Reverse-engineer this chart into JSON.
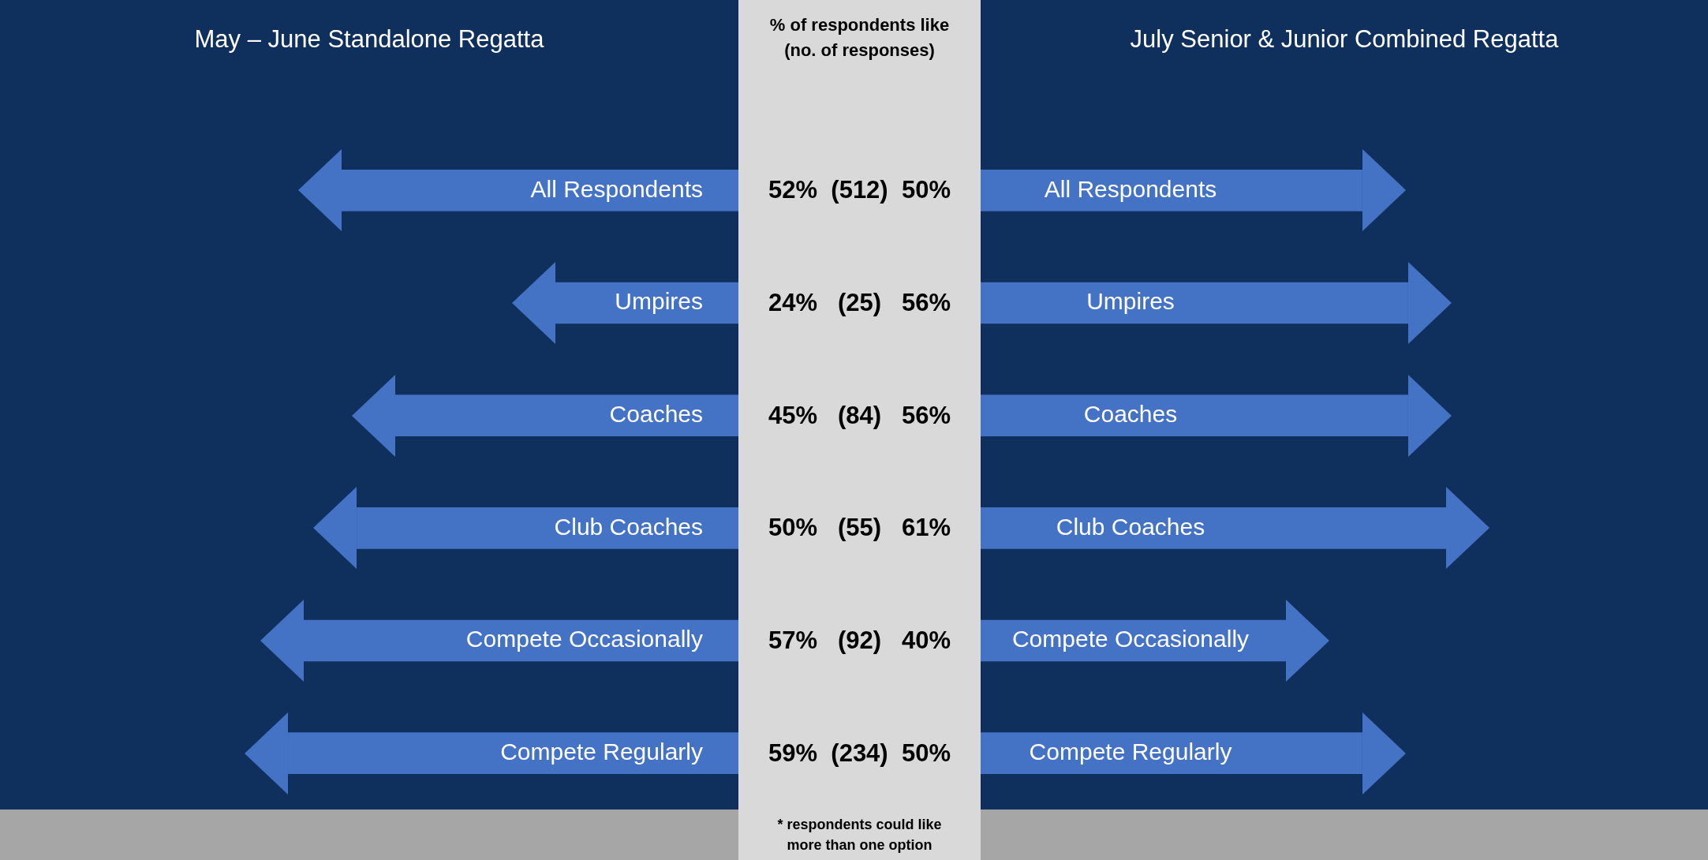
{
  "chart_data": [
    {
      "type": "bar",
      "orientation": "horizontal",
      "title": "May – June Standalone Regatta",
      "categories": [
        "All Respondents",
        "Umpires",
        "Coaches",
        "Club Coaches",
        "Compete Occasionally",
        "Compete Regularly"
      ],
      "values": [
        52,
        24,
        45,
        50,
        57,
        59
      ],
      "value_labels": [
        "52%",
        "24%",
        "45%",
        "50%",
        "57%",
        "59%"
      ],
      "color": "#4472c4"
    },
    {
      "type": "other",
      "title": "% of respondents like",
      "subtitle": "(no. of responses)",
      "values": [
        512,
        25,
        84,
        55,
        92,
        234
      ],
      "value_labels": [
        "(512)",
        "(25)",
        "(84)",
        "(55)",
        "(92)",
        "(234)"
      ],
      "annotations": [
        "* respondents could like more than one option"
      ]
    },
    {
      "type": "bar",
      "orientation": "horizontal",
      "title": "July Senior & Junior Combined Regatta",
      "categories": [
        "All Respondents",
        "Umpires",
        "Coaches",
        "Club Coaches",
        "Compete Occasionally",
        "Compete Regularly"
      ],
      "values": [
        50,
        56,
        56,
        61,
        40,
        50
      ],
      "value_labels": [
        "50%",
        "56%",
        "56%",
        "61%",
        "40%",
        "50%"
      ],
      "color": "#4472c4"
    }
  ]
}
